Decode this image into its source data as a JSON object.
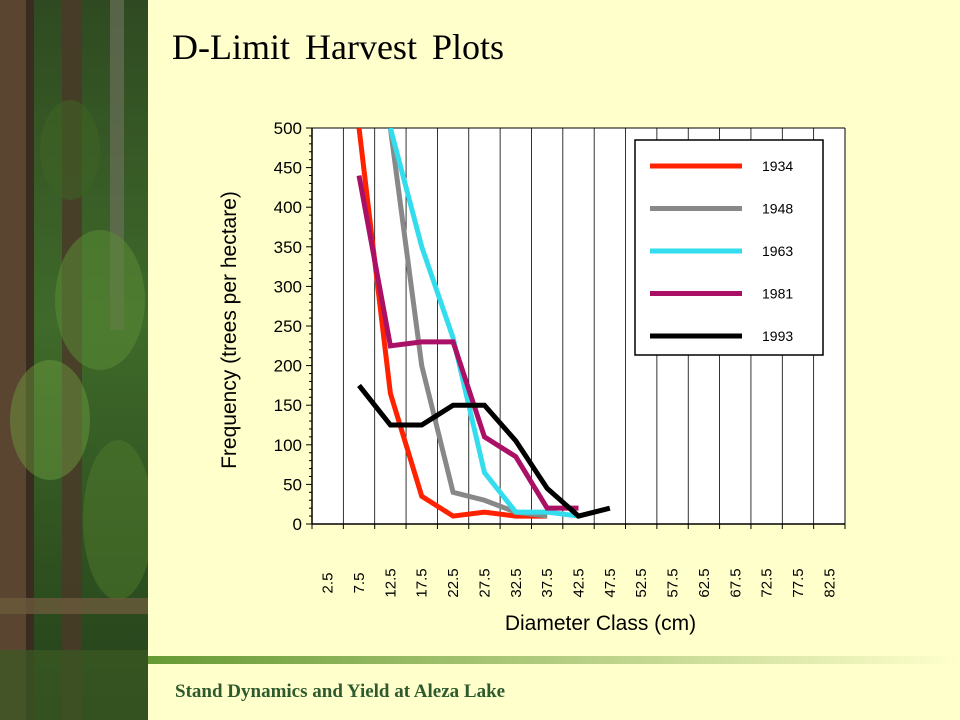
{
  "slide": {
    "title": "D-Limit Harvest Plots",
    "footer": "Stand Dynamics and Yield at Aleza Lake",
    "accent_color": "#669933",
    "background_color": "#ffffcc"
  },
  "chart_data": {
    "type": "line",
    "title": "",
    "xlabel": "Diameter Class (cm)",
    "ylabel": "Frequency (trees per hectare)",
    "categories": [
      "2.5",
      "7.5",
      "12.5",
      "17.5",
      "22.5",
      "27.5",
      "32.5",
      "37.5",
      "42.5",
      "47.5",
      "52.5",
      "57.5",
      "62.5",
      "67.5",
      "72.5",
      "77.5",
      "82.5"
    ],
    "ylim": [
      0,
      500
    ],
    "yticks": [
      0,
      50,
      100,
      150,
      200,
      250,
      300,
      350,
      400,
      450,
      500
    ],
    "grid": true,
    "legend_position": "top-right",
    "series": [
      {
        "name": "1934",
        "color": "#ff2200",
        "values": [
          null,
          500,
          165,
          35,
          10,
          15,
          10,
          10,
          null,
          null,
          null,
          null,
          null,
          null,
          null,
          null,
          null
        ]
      },
      {
        "name": "1948",
        "color": "#888888",
        "values": [
          null,
          null,
          500,
          200,
          40,
          30,
          15,
          10,
          null,
          null,
          null,
          null,
          null,
          null,
          null,
          null,
          null
        ]
      },
      {
        "name": "1963",
        "color": "#33ddee",
        "values": [
          null,
          null,
          500,
          350,
          235,
          65,
          15,
          15,
          10,
          null,
          null,
          null,
          null,
          null,
          null,
          null,
          null
        ]
      },
      {
        "name": "1981",
        "color": "#aa1166",
        "values": [
          null,
          440,
          225,
          230,
          230,
          110,
          85,
          20,
          20,
          null,
          null,
          null,
          null,
          null,
          null,
          null,
          null
        ]
      },
      {
        "name": "1993",
        "color": "#000000",
        "values": [
          null,
          175,
          125,
          125,
          150,
          150,
          105,
          45,
          10,
          20,
          null,
          null,
          null,
          null,
          null,
          null,
          null
        ]
      }
    ]
  }
}
